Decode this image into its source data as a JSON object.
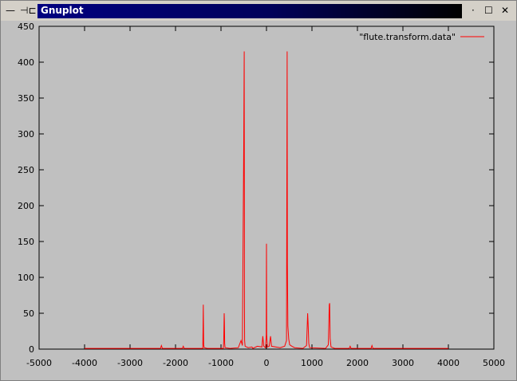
{
  "window": {
    "title": "Gnuplot",
    "menu_glyph": "—",
    "pin_glyph": "⊣⊏",
    "dot_glyph": "·",
    "maximize_glyph": "☐",
    "close_glyph": "✕"
  },
  "chart_data": {
    "type": "line",
    "title": "",
    "xlabel": "",
    "ylabel": "",
    "xlim": [
      -5000,
      5000
    ],
    "ylim": [
      0,
      450
    ],
    "xticks": [
      -5000,
      -4000,
      -3000,
      -2000,
      -1000,
      0,
      1000,
      2000,
      3000,
      4000,
      5000
    ],
    "yticks": [
      0,
      50,
      100,
      150,
      200,
      250,
      300,
      350,
      400,
      450
    ],
    "grid": false,
    "legend_position": "top-right",
    "series": [
      {
        "name": "\"flute.transform.data\"",
        "color": "#ff0000",
        "points": [
          [
            -4000,
            1
          ],
          [
            -3000,
            1
          ],
          [
            -2330,
            1
          ],
          [
            -2310,
            5
          ],
          [
            -2290,
            1
          ],
          [
            -1850,
            1
          ],
          [
            -1830,
            4
          ],
          [
            -1810,
            1
          ],
          [
            -1400,
            1
          ],
          [
            -1395,
            30
          ],
          [
            -1390,
            62
          ],
          [
            -1385,
            25
          ],
          [
            -1380,
            6
          ],
          [
            -1370,
            2
          ],
          [
            -1300,
            1
          ],
          [
            -950,
            1
          ],
          [
            -940,
            10
          ],
          [
            -930,
            50
          ],
          [
            -925,
            38
          ],
          [
            -920,
            8
          ],
          [
            -910,
            2
          ],
          [
            -800,
            1
          ],
          [
            -620,
            2
          ],
          [
            -560,
            12
          ],
          [
            -530,
            5
          ],
          [
            -500,
            285
          ],
          [
            -490,
            415
          ],
          [
            -485,
            60
          ],
          [
            -480,
            12
          ],
          [
            -470,
            4
          ],
          [
            -400,
            2
          ],
          [
            -320,
            3
          ],
          [
            -300,
            1
          ],
          [
            -200,
            4
          ],
          [
            -100,
            3
          ],
          [
            -80,
            18
          ],
          [
            -60,
            4
          ],
          [
            -20,
            2
          ],
          [
            -5,
            20
          ],
          [
            0,
            147
          ],
          [
            5,
            20
          ],
          [
            20,
            3
          ],
          [
            60,
            4
          ],
          [
            90,
            18
          ],
          [
            110,
            4
          ],
          [
            200,
            3
          ],
          [
            300,
            2
          ],
          [
            400,
            4
          ],
          [
            440,
            12
          ],
          [
            455,
            415
          ],
          [
            460,
            120
          ],
          [
            470,
            32
          ],
          [
            490,
            14
          ],
          [
            510,
            6
          ],
          [
            560,
            4
          ],
          [
            620,
            2
          ],
          [
            800,
            1
          ],
          [
            880,
            5
          ],
          [
            905,
            50
          ],
          [
            915,
            35
          ],
          [
            930,
            8
          ],
          [
            950,
            2
          ],
          [
            1300,
            1
          ],
          [
            1360,
            6
          ],
          [
            1380,
            62
          ],
          [
            1390,
            64
          ],
          [
            1400,
            15
          ],
          [
            1420,
            3
          ],
          [
            1500,
            1
          ],
          [
            1820,
            1
          ],
          [
            1840,
            4
          ],
          [
            1860,
            1
          ],
          [
            2300,
            1
          ],
          [
            2320,
            5
          ],
          [
            2340,
            1
          ],
          [
            3000,
            1
          ],
          [
            4000,
            1
          ]
        ]
      }
    ]
  }
}
